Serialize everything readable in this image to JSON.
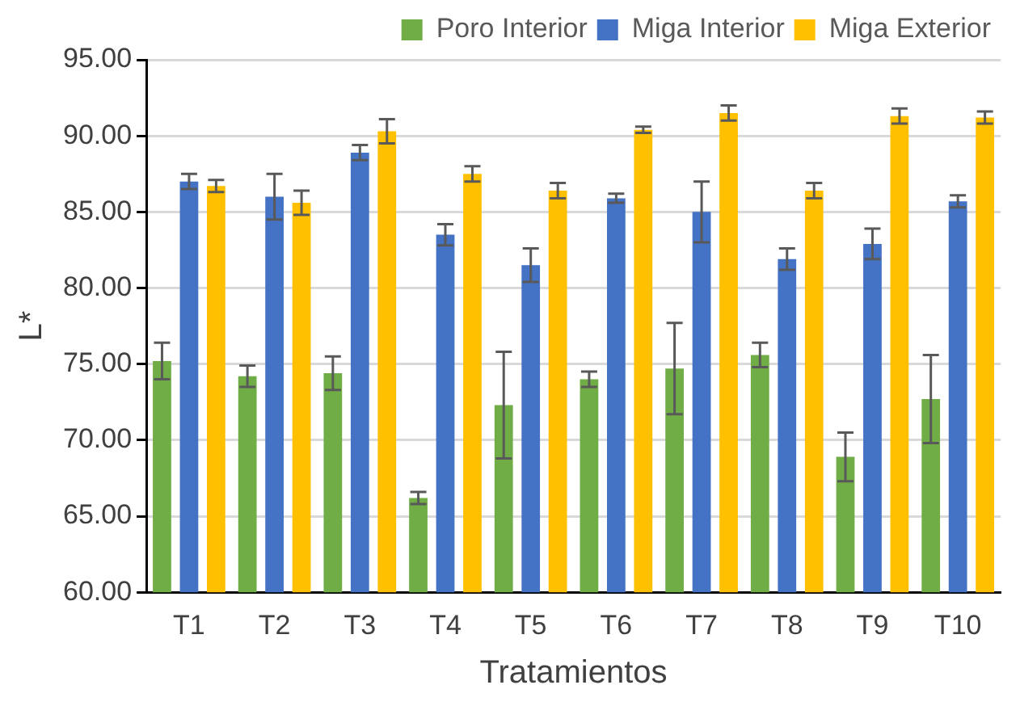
{
  "chart_data": {
    "type": "bar",
    "xlabel": "Tratamientos",
    "ylabel": "L*",
    "categories": [
      "T1",
      "T2",
      "T3",
      "T4",
      "T5",
      "T6",
      "T7",
      "T8",
      "T9",
      "T10"
    ],
    "series": [
      {
        "name": "Poro Interior",
        "color": "#70ad47",
        "values": [
          75.2,
          74.2,
          74.4,
          66.2,
          72.3,
          74.0,
          74.7,
          75.6,
          68.9,
          72.7
        ],
        "errors": [
          1.2,
          0.7,
          1.1,
          0.4,
          3.5,
          0.5,
          3.0,
          0.8,
          1.6,
          2.9
        ]
      },
      {
        "name": "Miga Interior",
        "color": "#4472c4",
        "values": [
          87.0,
          86.0,
          88.9,
          83.5,
          81.5,
          85.9,
          85.0,
          81.9,
          82.9,
          85.7
        ],
        "errors": [
          0.5,
          1.5,
          0.5,
          0.7,
          1.1,
          0.3,
          2.0,
          0.7,
          1.0,
          0.4
        ]
      },
      {
        "name": "Miga Exterior",
        "color": "#ffc000",
        "values": [
          86.7,
          85.6,
          90.3,
          87.5,
          86.4,
          90.4,
          91.5,
          86.4,
          91.3,
          91.2
        ],
        "errors": [
          0.4,
          0.8,
          0.8,
          0.5,
          0.5,
          0.2,
          0.5,
          0.5,
          0.5,
          0.4
        ]
      }
    ],
    "ylim": [
      60,
      95
    ],
    "yticks": [
      {
        "value": 60,
        "label": "60.00"
      },
      {
        "value": 65,
        "label": "65.00"
      },
      {
        "value": 70,
        "label": "70.00"
      },
      {
        "value": 75,
        "label": "75.00"
      },
      {
        "value": 80,
        "label": "80.00"
      },
      {
        "value": 85,
        "label": "85.00"
      },
      {
        "value": 90,
        "label": "90.00"
      },
      {
        "value": 95,
        "label": "95.00"
      }
    ],
    "grid": "y",
    "legend": "top right"
  }
}
